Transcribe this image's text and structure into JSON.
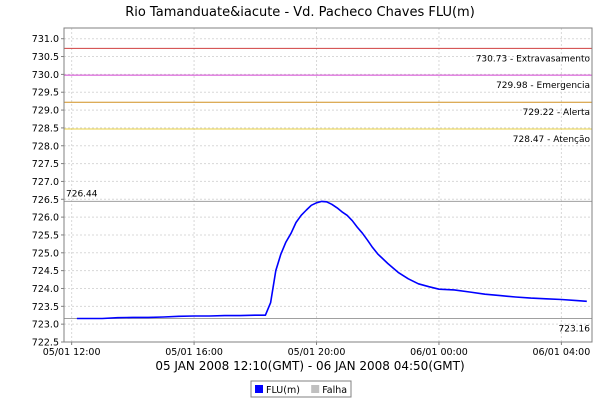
{
  "chart_data": {
    "type": "line",
    "title": "Rio Tamanduate&iacute - Vd. Pacheco Chaves FLU(m)",
    "subtitle": "05 JAN 2008 12:10(GMT) - 06 JAN 2008 04:50(GMT)",
    "xlabel": "",
    "ylabel": "",
    "ylim": [
      722.5,
      731.3
    ],
    "yticks": [
      "722.5",
      "723.0",
      "723.5",
      "724.0",
      "724.5",
      "725.0",
      "725.5",
      "726.0",
      "726.5",
      "727.0",
      "727.5",
      "728.0",
      "728.5",
      "729.0",
      "729.5",
      "730.0",
      "730.5",
      "731.0"
    ],
    "xlim_hours": [
      11.75,
      29.0
    ],
    "xticks": [
      {
        "label": "05/01 12:00",
        "h": 12
      },
      {
        "label": "05/01 16:00",
        "h": 16
      },
      {
        "label": "05/01 20:00",
        "h": 20
      },
      {
        "label": "06/01 00:00",
        "h": 24
      },
      {
        "label": "06/01 04:00",
        "h": 28
      }
    ],
    "grid": true,
    "reference_lines": [
      {
        "value": 730.73,
        "label": "730.73 - Extravasamento",
        "color": "#d04040"
      },
      {
        "value": 729.98,
        "label": "729.98 - Emergencia",
        "color": "#d040d0"
      },
      {
        "value": 729.22,
        "label": "729.22 - Alerta",
        "color": "#d09020"
      },
      {
        "value": 728.47,
        "label": "728.47 - Atenção",
        "color": "#e8d040"
      }
    ],
    "max_line": {
      "value": 726.44,
      "label": "726.44",
      "color": "#a0a0a0"
    },
    "min_line": {
      "value": 723.16,
      "label": "723.16",
      "color": "#a0a0a0"
    },
    "series": [
      {
        "name": "FLU(m)",
        "color": "#0000ff",
        "x": [
          12.17,
          13.0,
          13.5,
          14.0,
          14.5,
          15.0,
          15.5,
          16.0,
          16.5,
          17.0,
          17.5,
          18.0,
          18.33,
          18.5,
          18.67,
          18.83,
          19.0,
          19.17,
          19.33,
          19.5,
          19.67,
          19.83,
          20.0,
          20.17,
          20.33,
          20.5,
          20.67,
          20.83,
          21.0,
          21.17,
          21.33,
          21.5,
          21.67,
          21.83,
          22.0,
          22.33,
          22.67,
          23.0,
          23.33,
          23.67,
          24.0,
          24.5,
          25.0,
          25.5,
          26.0,
          26.5,
          27.0,
          27.5,
          28.0,
          28.5,
          28.83
        ],
        "y": [
          723.16,
          723.16,
          723.18,
          723.19,
          723.19,
          723.2,
          723.22,
          723.23,
          723.23,
          723.24,
          723.24,
          723.25,
          723.25,
          723.6,
          724.5,
          724.95,
          725.3,
          725.55,
          725.85,
          726.05,
          726.2,
          726.33,
          726.4,
          726.44,
          726.43,
          726.36,
          726.26,
          726.15,
          726.05,
          725.9,
          725.72,
          725.55,
          725.35,
          725.15,
          724.97,
          724.7,
          724.45,
          724.27,
          724.13,
          724.05,
          723.98,
          723.96,
          723.9,
          723.84,
          723.8,
          723.76,
          723.73,
          723.71,
          723.69,
          723.66,
          723.64
        ]
      }
    ],
    "legend": {
      "placement": "bottom-center",
      "entries": [
        {
          "label": "FLU(m)",
          "color": "#0000ff"
        },
        {
          "label": "Falha",
          "color": "#c0c0c0"
        }
      ]
    }
  }
}
